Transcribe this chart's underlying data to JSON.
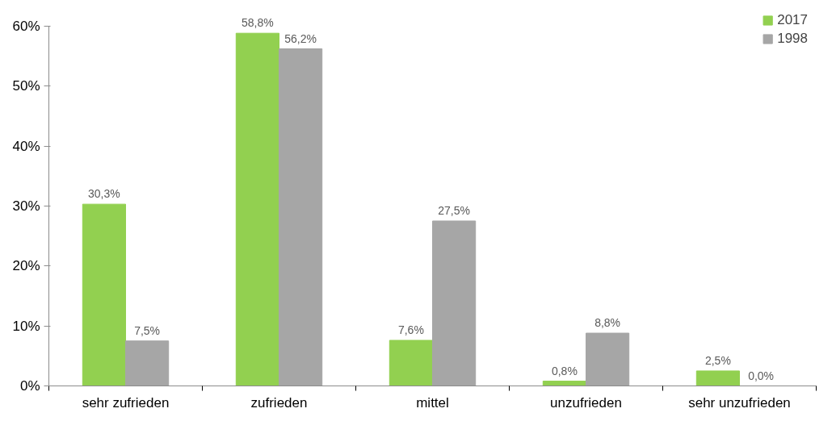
{
  "chart_data": {
    "type": "bar",
    "categories": [
      "sehr zufrieden",
      "zufrieden",
      "mittel",
      "unzufrieden",
      "sehr unzufrieden"
    ],
    "series": [
      {
        "name": "2017",
        "color": "#92d050",
        "values": [
          30.3,
          58.8,
          7.6,
          0.8,
          2.5
        ],
        "value_labels": [
          "30,3%",
          "58,8%",
          "7,6%",
          "0,8%",
          "2,5%"
        ]
      },
      {
        "name": "1998",
        "color": "#a6a6a6",
        "values": [
          7.5,
          56.2,
          27.5,
          8.8,
          0.0
        ],
        "value_labels": [
          "7,5%",
          "56,2%",
          "27,5%",
          "8,8%",
          "0,0%"
        ]
      }
    ],
    "ylim": [
      0,
      60
    ],
    "yticks": [
      {
        "value": 0,
        "label": "0%"
      },
      {
        "value": 10,
        "label": "10%"
      },
      {
        "value": 20,
        "label": "20%"
      },
      {
        "value": 30,
        "label": "30%"
      },
      {
        "value": 40,
        "label": "40%"
      },
      {
        "value": 50,
        "label": "50%"
      },
      {
        "value": 60,
        "label": "60%"
      }
    ],
    "grid": false,
    "legend": "top right"
  }
}
